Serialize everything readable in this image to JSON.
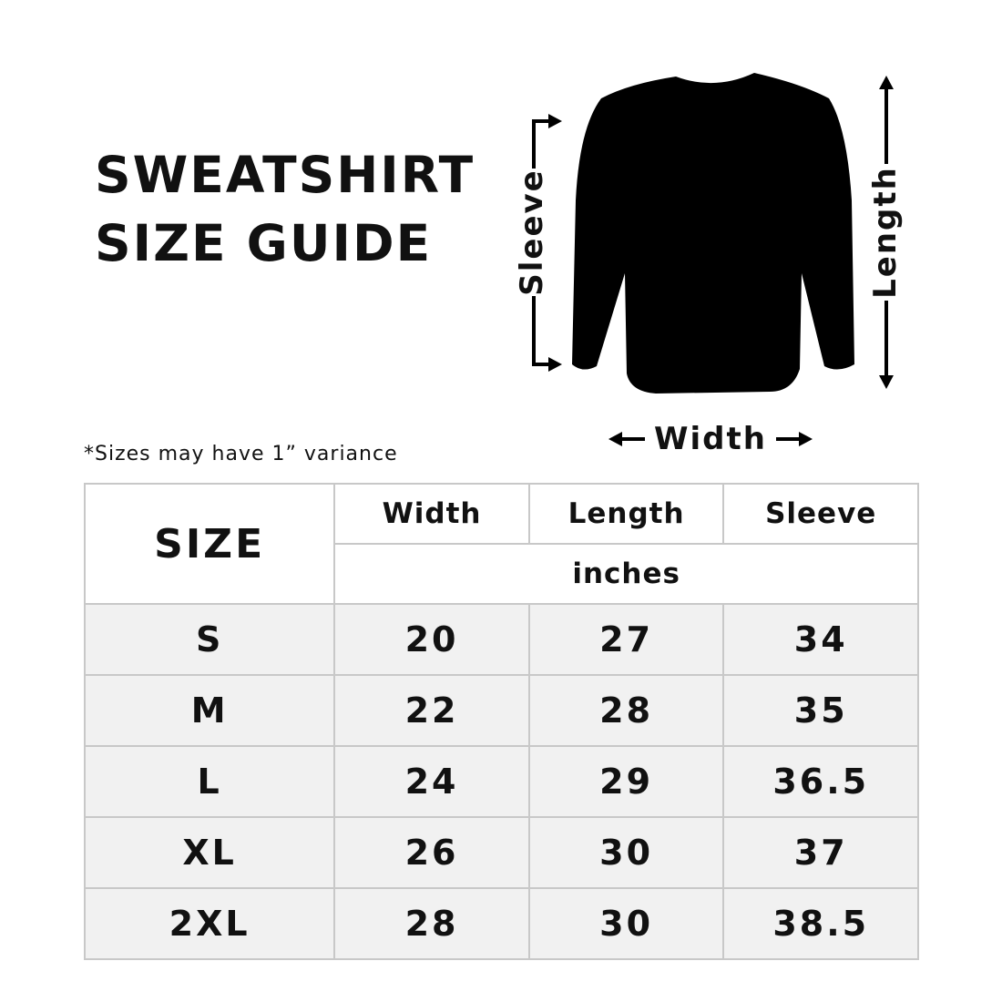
{
  "title_line1": "SWEATSHIRT",
  "title_line2": "SIZE GUIDE",
  "note": "*Sizes may have 1” variance",
  "diagram": {
    "sleeve": "Sleeve",
    "length": "Length",
    "width": "Width",
    "garment_color": "#000000"
  },
  "table": {
    "size_header": "SIZE",
    "columns": [
      "Width",
      "Length",
      "Sleeve"
    ],
    "unit": "inches",
    "rows": [
      {
        "size": "S",
        "width": "20",
        "length": "27",
        "sleeve": "34"
      },
      {
        "size": "M",
        "width": "22",
        "length": "28",
        "sleeve": "35"
      },
      {
        "size": "L",
        "width": "24",
        "length": "29",
        "sleeve": "36.5"
      },
      {
        "size": "XL",
        "width": "26",
        "length": "30",
        "sleeve": "37"
      },
      {
        "size": "2XL",
        "width": "28",
        "length": "30",
        "sleeve": "38.5"
      }
    ]
  }
}
